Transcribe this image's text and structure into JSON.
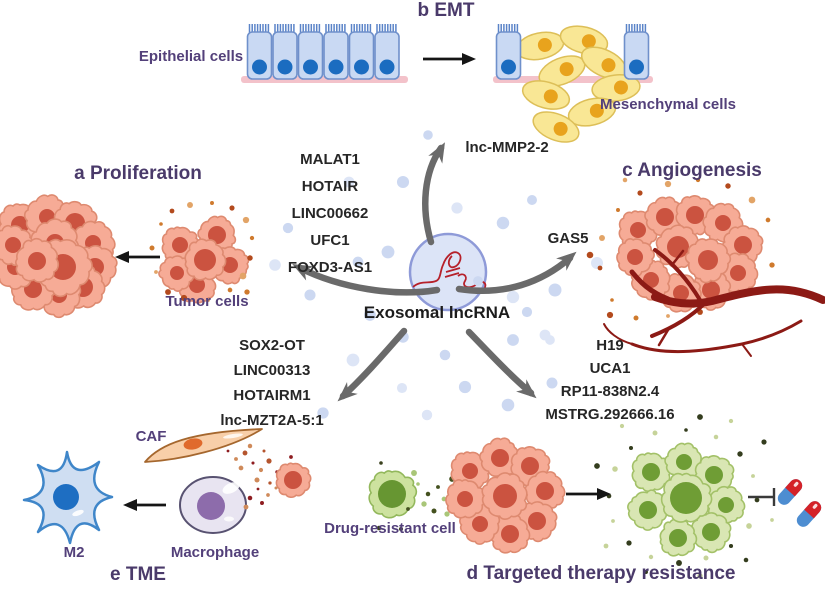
{
  "center": {
    "label": "Exosomal lncRNA"
  },
  "sections": {
    "proliferation": {
      "title": "a Proliferation",
      "cell_label": "Tumor cells",
      "lncRNAs": [
        "MALAT1",
        "HOTAIR",
        "LINC00662",
        "UFC1",
        "FOXD3-AS1"
      ]
    },
    "emt": {
      "title": "b EMT",
      "left_label": "Epithelial cells",
      "right_label": "Mesenchymal cells",
      "lncRNA": "lnc-MMP2-2"
    },
    "angiogenesis": {
      "title": "c Angiogenesis",
      "lncRNA": "GAS5"
    },
    "therapy": {
      "title": "d Targeted therapy resistance",
      "cell_label": "Drug-resistant cell",
      "lncRNAs": [
        "H19",
        "UCA1",
        "RP11-838N2.4",
        "MSTRG.292666.16"
      ]
    },
    "tme": {
      "title": "e TME",
      "caf_label": "CAF",
      "macrophage_label": "Macrophage",
      "m2_label": "M2",
      "lncRNAs": [
        "SOX2-OT",
        "LINC00313",
        "HOTAIRM1",
        "lnc-MZT2A-5:1"
      ]
    }
  },
  "colors": {
    "title_purple": "#4a3a6a",
    "gene_black": "#262626",
    "arrow_gray": "#6a6a6a",
    "exosome_fill": "#dce4f7",
    "exosome_border": "#8e9ad8",
    "tumor_cell": "#f6ab96",
    "vessel_red": "#8c1a15",
    "resistant_green": "#d9e6b3"
  }
}
